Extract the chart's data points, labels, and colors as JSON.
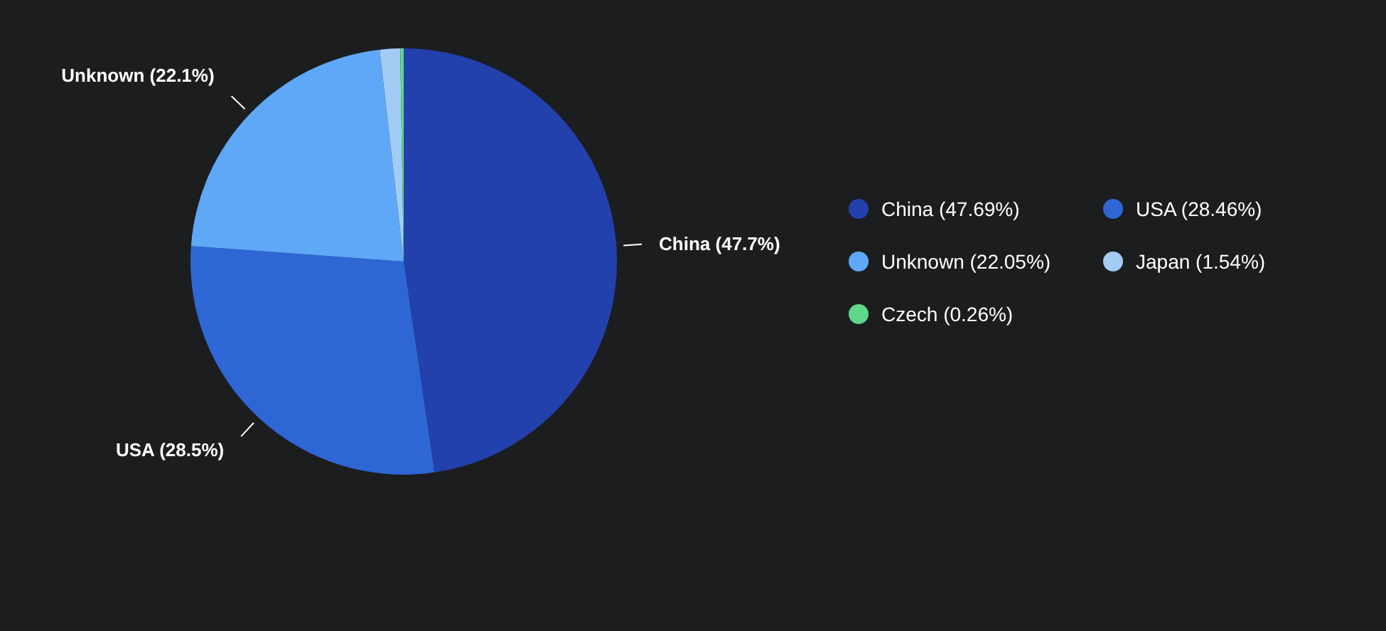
{
  "chart_data": {
    "type": "pie",
    "categories": [
      "China (47.69%)",
      "USA (28.46%)",
      "Unknown (22.05%)",
      "Japan (1.54%)",
      "Czech (0.26%)"
    ],
    "values": [
      47.69,
      28.46,
      22.05,
      1.54,
      0.26
    ],
    "colors": [
      "#2341ad",
      "#2f66d6",
      "#5ea8f7",
      "#a3ccf5",
      "#5fd68a"
    ],
    "value_labels": [
      "China (47.7%)",
      "USA (28.5%)",
      "Unknown (22.1%)",
      null,
      null
    ],
    "legend": "right"
  }
}
